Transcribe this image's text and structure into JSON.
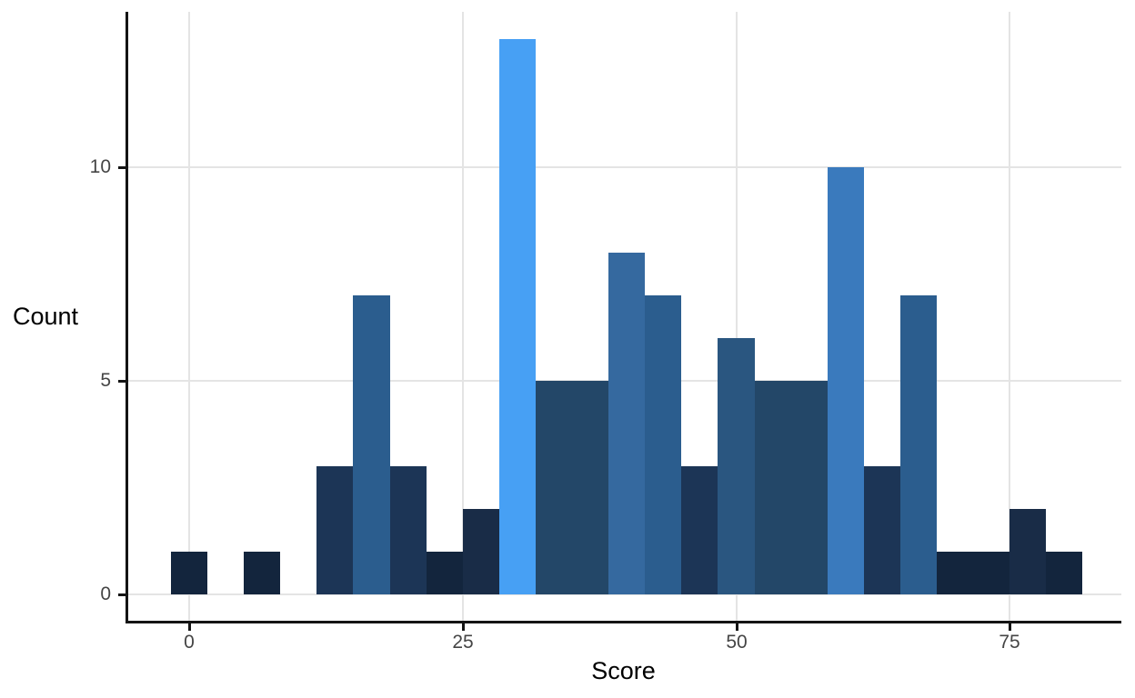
{
  "chart_data": {
    "type": "bar",
    "subtype": "histogram",
    "title": "",
    "xlabel": "Score",
    "ylabel": "Count",
    "bin_start": -1.6667,
    "bin_width": 3.3333,
    "counts": [
      1,
      0,
      1,
      0,
      3,
      7,
      3,
      1,
      2,
      13,
      5,
      5,
      8,
      7,
      3,
      6,
      5,
      5,
      10,
      3,
      7,
      1,
      1,
      2,
      1
    ],
    "bin_centers": [
      0,
      3.33,
      6.67,
      10,
      13.33,
      16.67,
      20,
      23.33,
      26.67,
      30,
      33.33,
      36.67,
      40,
      43.33,
      46.67,
      50,
      53.33,
      56.67,
      60,
      63.33,
      66.67,
      70,
      73.33,
      76.67,
      80
    ],
    "total_observations": 100,
    "x_ticks": [
      0,
      25,
      50,
      75
    ],
    "y_ticks": [
      0,
      5,
      10
    ],
    "xlim": [
      -5.7,
      85.2
    ],
    "ylim": [
      -0.65,
      13.65
    ],
    "grid": "major-only",
    "legend": "none",
    "fill_by": "count",
    "fill_scale": {
      "1": "#13253D",
      "2": "#192C47",
      "3": "#1C3556",
      "5": "#234768",
      "6": "#2A5680",
      "7": "#2B5D8E",
      "8": "#35699F",
      "10": "#3A7ABD",
      "13": "#47A0F4"
    },
    "colors": {
      "background": "#FFFFFF",
      "gridline": "#E4E4E4",
      "axis_line": "#141414",
      "tick_label": "#454545",
      "axis_title": "#000000"
    }
  }
}
